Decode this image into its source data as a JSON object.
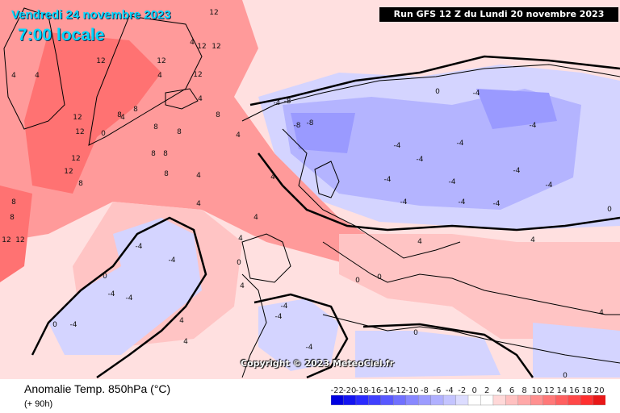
{
  "header": {
    "run_info": "Run GFS 12 Z du Lundi 20 novembre 2023",
    "valid_date": "Vendredi 24 novembre 2023",
    "valid_time": "7:00 locale"
  },
  "footer": {
    "variable": "Anomalie Temp. 850hPa (°C)",
    "lead_time": "(+ 90h)",
    "copyright": "Copyright © 2023 MeteoCiel.fr"
  },
  "legend": {
    "ticks": [
      "-22",
      "-20",
      "-18",
      "-16",
      "-14",
      "-12",
      "-10",
      "-8",
      "-6",
      "-4",
      "-2",
      "0",
      "2",
      "4",
      "6",
      "8",
      "10",
      "12",
      "14",
      "16",
      "18",
      "20"
    ],
    "colors": [
      "#0000e0",
      "#1414f0",
      "#2a2aff",
      "#4040ff",
      "#5858ff",
      "#7070ff",
      "#8888ff",
      "#9c9cff",
      "#b0b0ff",
      "#c4c4ff",
      "#dcdcff",
      "#ffffff",
      "#ffffff",
      "#ffd8d8",
      "#ffc0c0",
      "#ffa8a8",
      "#ff9090",
      "#ff7878",
      "#ff6060",
      "#ff4848",
      "#ff3030",
      "#e81818"
    ]
  },
  "map": {
    "colors": {
      "ocean_warm": "#ff9a9a",
      "warm_strong": "#ff7272",
      "warm_light": "#ffc4c4",
      "warm_pale": "#ffe0e0",
      "neutral": "#ffffff",
      "cold_light": "#d4d4ff",
      "cold": "#b4b4ff",
      "cold_strong": "#9a9aff",
      "coast": "#000000"
    },
    "contour_labels": [
      {
        "text": "12"
      },
      {
        "text": "12"
      },
      {
        "text": "12"
      },
      {
        "text": "12"
      },
      {
        "text": "12"
      },
      {
        "text": "12"
      },
      {
        "text": "12"
      },
      {
        "text": "12"
      },
      {
        "text": "12"
      },
      {
        "text": "12"
      },
      {
        "text": "12"
      },
      {
        "text": "12"
      },
      {
        "text": "8"
      },
      {
        "text": "8"
      },
      {
        "text": "8"
      },
      {
        "text": "8"
      },
      {
        "text": "8"
      },
      {
        "text": "8"
      },
      {
        "text": "8"
      },
      {
        "text": "8"
      },
      {
        "text": "8"
      },
      {
        "text": "8"
      },
      {
        "text": "8"
      },
      {
        "text": "4"
      },
      {
        "text": "4"
      },
      {
        "text": "4"
      },
      {
        "text": "4"
      },
      {
        "text": "4"
      },
      {
        "text": "4"
      },
      {
        "text": "4"
      },
      {
        "text": "4"
      },
      {
        "text": "4"
      },
      {
        "text": "4"
      },
      {
        "text": "4"
      },
      {
        "text": "4"
      },
      {
        "text": "4"
      },
      {
        "text": "4"
      },
      {
        "text": "4"
      },
      {
        "text": "4"
      },
      {
        "text": "4"
      },
      {
        "text": "4"
      },
      {
        "text": "0"
      },
      {
        "text": "0"
      },
      {
        "text": "0"
      },
      {
        "text": "0"
      },
      {
        "text": "0"
      },
      {
        "text": "0"
      },
      {
        "text": "0"
      },
      {
        "text": "0"
      },
      {
        "text": "0"
      },
      {
        "text": "0"
      },
      {
        "text": "-4"
      },
      {
        "text": "-4"
      },
      {
        "text": "-4"
      },
      {
        "text": "-4"
      },
      {
        "text": "-4"
      },
      {
        "text": "-4"
      },
      {
        "text": "-4"
      },
      {
        "text": "-4"
      },
      {
        "text": "-4"
      },
      {
        "text": "-4"
      },
      {
        "text": "-4"
      },
      {
        "text": "-4"
      },
      {
        "text": "-4"
      },
      {
        "text": "-4"
      },
      {
        "text": "-4"
      },
      {
        "text": "-4"
      },
      {
        "text": "-4"
      },
      {
        "text": "-4"
      },
      {
        "text": "-4"
      },
      {
        "text": "-4"
      },
      {
        "text": "-4"
      },
      {
        "text": "-8"
      },
      {
        "text": "-8"
      },
      {
        "text": "-8"
      }
    ]
  }
}
